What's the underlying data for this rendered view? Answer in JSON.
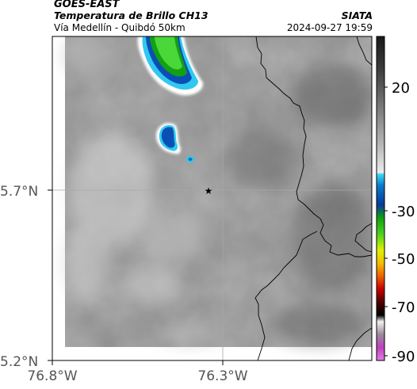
{
  "header": {
    "satellite": "GOES-EAST",
    "product": "Temperatura de Brillo CH13",
    "location": "Vía Medellín - Quibdó 50km",
    "agency": "SIATA",
    "datetime": "2024-09-27 19:59"
  },
  "map": {
    "lat_ticks": [
      "5.7°N",
      "5.2°N"
    ],
    "lon_ticks": [
      "76.8°W",
      "76.3°W"
    ],
    "marker": "star"
  },
  "colorbar": {
    "tick_labels": [
      "20",
      "-30",
      "-50",
      "-70",
      "-90"
    ]
  },
  "colors": {
    "cold_cloud_green": "#1ec81e",
    "cold_cloud_blue": "#0a50b4",
    "cold_cloud_cyan": "#30c8f0",
    "background_gray": "#8a8a8a"
  }
}
